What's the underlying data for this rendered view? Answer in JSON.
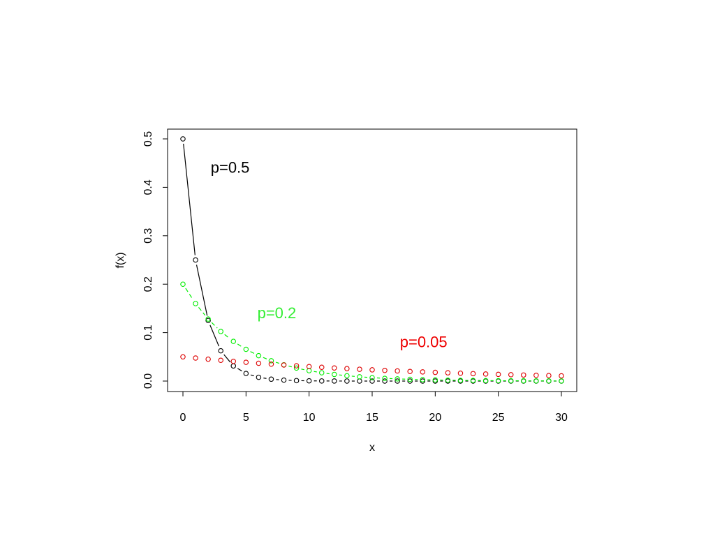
{
  "chart_data": {
    "type": "scatter",
    "title": "",
    "xlabel": "x",
    "ylabel": "f(x)",
    "xlim": [
      0,
      30
    ],
    "ylim": [
      0,
      0.5
    ],
    "x_ticks": [
      0,
      5,
      10,
      15,
      20,
      25,
      30
    ],
    "y_ticks": [
      0.0,
      0.1,
      0.2,
      0.3,
      0.4,
      0.5
    ],
    "x_tick_labels": [
      "0",
      "5",
      "10",
      "15",
      "20",
      "25",
      "30"
    ],
    "y_tick_labels": [
      "0.0",
      "0.1",
      "0.2",
      "0.3",
      "0.4",
      "0.5"
    ],
    "grid": false,
    "legend": "none",
    "series": [
      {
        "label": "p=0.5",
        "color": "#000000",
        "marker": "open-circle",
        "line": "solid",
        "x": [
          0,
          1,
          2,
          3,
          4,
          5,
          6,
          7,
          8,
          9,
          10,
          11,
          12,
          13,
          14,
          15,
          16,
          17,
          18,
          19,
          20,
          21,
          22,
          23,
          24,
          25,
          26,
          27,
          28,
          29,
          30
        ],
        "y": [
          0.5,
          0.25,
          0.125,
          0.0625,
          0.03125,
          0.015625,
          0.0078125,
          0.00390625,
          0.00195313,
          0.00097656,
          0.00048828,
          0.00024414,
          0.00012207,
          6.104e-05,
          3.052e-05,
          1.526e-05,
          7.63e-06,
          3.81e-06,
          1.91e-06,
          9.5e-07,
          4.8e-07,
          2.4e-07,
          1.2e-07,
          6e-08,
          3e-08,
          1e-08,
          1e-08,
          0,
          0,
          0,
          0
        ]
      },
      {
        "label": "p=0.2",
        "color": "#00ee00",
        "marker": "open-circle",
        "line": "dashed",
        "x": [
          0,
          1,
          2,
          3,
          4,
          5,
          6,
          7,
          8,
          9,
          10,
          11,
          12,
          13,
          14,
          15,
          16,
          17,
          18,
          19,
          20,
          21,
          22,
          23,
          24,
          25,
          26,
          27,
          28,
          29,
          30
        ],
        "y": [
          0.2,
          0.16,
          0.128,
          0.1024,
          0.08192,
          0.065536,
          0.052429,
          0.041943,
          0.033554,
          0.026844,
          0.021475,
          0.01718,
          0.013744,
          0.010995,
          0.008796,
          0.007037,
          0.005629,
          0.004504,
          0.003603,
          0.002882,
          0.002306,
          0.001845,
          0.001476,
          0.001181,
          0.000944,
          0.000756,
          0.000604,
          0.000484,
          0.000387,
          0.00031,
          0.000248
        ]
      },
      {
        "label": "p=0.05",
        "color": "#dd0000",
        "marker": "open-circle",
        "line": "none",
        "x": [
          0,
          1,
          2,
          3,
          4,
          5,
          6,
          7,
          8,
          9,
          10,
          11,
          12,
          13,
          14,
          15,
          16,
          17,
          18,
          19,
          20,
          21,
          22,
          23,
          24,
          25,
          26,
          27,
          28,
          29,
          30
        ],
        "y": [
          0.05,
          0.0475,
          0.045125,
          0.042869,
          0.040725,
          0.038689,
          0.036755,
          0.034917,
          0.033171,
          0.031512,
          0.029937,
          0.02844,
          0.027018,
          0.025667,
          0.024384,
          0.023165,
          0.022006,
          0.020906,
          0.019861,
          0.018868,
          0.017924,
          0.017028,
          0.016177,
          0.015368,
          0.0146,
          0.01387,
          0.013176,
          0.012517,
          0.011891,
          0.011297,
          0.010732
        ]
      }
    ],
    "annotations": [
      {
        "text": "p=0.5",
        "color": "#000000",
        "x": 2.2,
        "y": 0.43
      },
      {
        "text": "p=0.2",
        "color": "#33ee33",
        "x": 5.9,
        "y": 0.13
      },
      {
        "text": "p=0.05",
        "color": "#ee0000",
        "x": 17.2,
        "y": 0.07
      }
    ]
  }
}
